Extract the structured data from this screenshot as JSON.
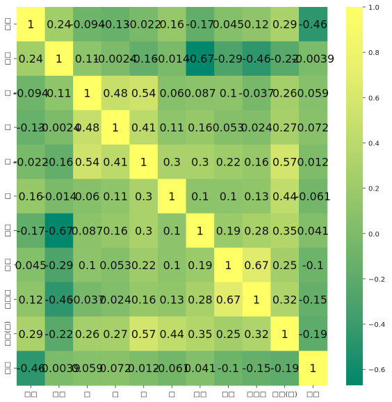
{
  "chart_data": {
    "type": "heatmap",
    "title": "",
    "row_labels": [
      "□□",
      "□□",
      "□",
      "□",
      "□",
      "□",
      "□□",
      "□□",
      "□□□",
      "□□(□)",
      "□□"
    ],
    "col_labels": [
      "□□",
      "□□",
      "□",
      "□",
      "□",
      "□",
      "□□",
      "□□",
      "□□□",
      "□□(□)",
      "□□"
    ],
    "values": [
      [
        1,
        0.24,
        -0.094,
        -0.13,
        -0.022,
        0.16,
        -0.17,
        0.045,
        0.12,
        0.29,
        -0.46
      ],
      [
        0.24,
        1,
        0.11,
        -0.0024,
        -0.16,
        -0.014,
        -0.67,
        -0.29,
        -0.46,
        -0.22,
        -0.0039
      ],
      [
        -0.094,
        0.11,
        1,
        0.48,
        0.54,
        0.06,
        0.087,
        0.1,
        -0.037,
        0.26,
        0.059
      ],
      [
        -0.13,
        -0.0024,
        0.48,
        1,
        0.41,
        0.11,
        0.16,
        0.053,
        0.024,
        0.27,
        0.072
      ],
      [
        -0.022,
        -0.16,
        0.54,
        0.41,
        1,
        0.3,
        0.3,
        0.22,
        0.16,
        0.57,
        0.012
      ],
      [
        0.16,
        -0.014,
        0.06,
        0.11,
        0.3,
        1,
        0.1,
        0.1,
        0.13,
        0.44,
        -0.061
      ],
      [
        -0.17,
        -0.67,
        0.087,
        0.16,
        0.3,
        0.1,
        1,
        0.19,
        0.28,
        0.35,
        0.041
      ],
      [
        0.045,
        -0.29,
        0.1,
        0.053,
        0.22,
        0.1,
        0.19,
        1,
        0.67,
        0.25,
        -0.1
      ],
      [
        0.12,
        -0.46,
        -0.037,
        0.024,
        0.16,
        0.13,
        0.28,
        0.67,
        1,
        0.32,
        -0.15
      ],
      [
        0.29,
        -0.22,
        0.26,
        0.27,
        0.57,
        0.44,
        0.35,
        0.25,
        0.32,
        1,
        -0.19
      ],
      [
        -0.46,
        -0.0039,
        0.059,
        0.072,
        0.012,
        -0.061,
        0.041,
        -0.1,
        -0.15,
        -0.19,
        1
      ]
    ],
    "annotations": [
      [
        "1",
        "0.24",
        "-0.094",
        "-0.13",
        "-0.022",
        "0.16",
        "-0.17",
        "0.045",
        "0.12",
        "0.29",
        "-0.46"
      ],
      [
        "0.24",
        "1",
        "0.11",
        "-0.0024",
        "-0.16",
        "-0.014",
        "-0.67",
        "-0.29",
        "-0.46",
        "-0.22",
        "-0.0039"
      ],
      [
        "-0.094",
        "0.11",
        "1",
        "0.48",
        "0.54",
        "0.06",
        "0.087",
        "0.1",
        "-0.037",
        "0.26",
        "0.059"
      ],
      [
        "-0.13",
        "-0.0024",
        "0.48",
        "1",
        "0.41",
        "0.11",
        "0.16",
        "0.053",
        "0.024",
        "0.27",
        "0.072"
      ],
      [
        "-0.022",
        "-0.16",
        "0.54",
        "0.41",
        "1",
        "0.3",
        "0.3",
        "0.22",
        "0.16",
        "0.57",
        "0.012"
      ],
      [
        "0.16",
        "-0.014",
        "0.06",
        "0.11",
        "0.3",
        "1",
        "0.1",
        "0.1",
        "0.13",
        "0.44",
        "-0.061"
      ],
      [
        "-0.17",
        "-0.67",
        "0.087",
        "0.16",
        "0.3",
        "0.1",
        "1",
        "0.19",
        "0.28",
        "0.35",
        "0.041"
      ],
      [
        "0.045",
        "-0.29",
        "0.1",
        "0.053",
        "0.22",
        "0.1",
        "0.19",
        "1",
        "0.67",
        "0.25",
        "-0.1"
      ],
      [
        "0.12",
        "-0.46",
        "-0.037",
        "0.024",
        "0.16",
        "0.13",
        "0.28",
        "0.67",
        "1",
        "0.32",
        "-0.15"
      ],
      [
        "0.29",
        "-0.22",
        "0.26",
        "0.27",
        "0.57",
        "0.44",
        "0.35",
        "0.25",
        "0.32",
        "1",
        "-0.19"
      ],
      [
        "-0.46",
        "-0.0039",
        "0.059",
        "0.072",
        "0.012",
        "-0.061",
        "0.041",
        "-0.1",
        "-0.15",
        "-0.19",
        "1"
      ]
    ],
    "colorbar": {
      "min": -0.67,
      "max": 1.0,
      "ticks": [
        1.0,
        0.8,
        0.6,
        0.4,
        0.2,
        0.0,
        -0.2,
        -0.4,
        -0.6
      ],
      "tick_labels": [
        "1.0",
        "0.8",
        "0.6",
        "0.4",
        "0.2",
        "0.0",
        "−0.2",
        "−0.4",
        "−0.6"
      ]
    },
    "colormap": [
      "#00876c",
      "#3d9b6c",
      "#6bb26a",
      "#97c86a",
      "#c1dd6b",
      "#e8ef6d",
      "#ffff66"
    ],
    "grid": false,
    "legend": "colorbar-right"
  }
}
